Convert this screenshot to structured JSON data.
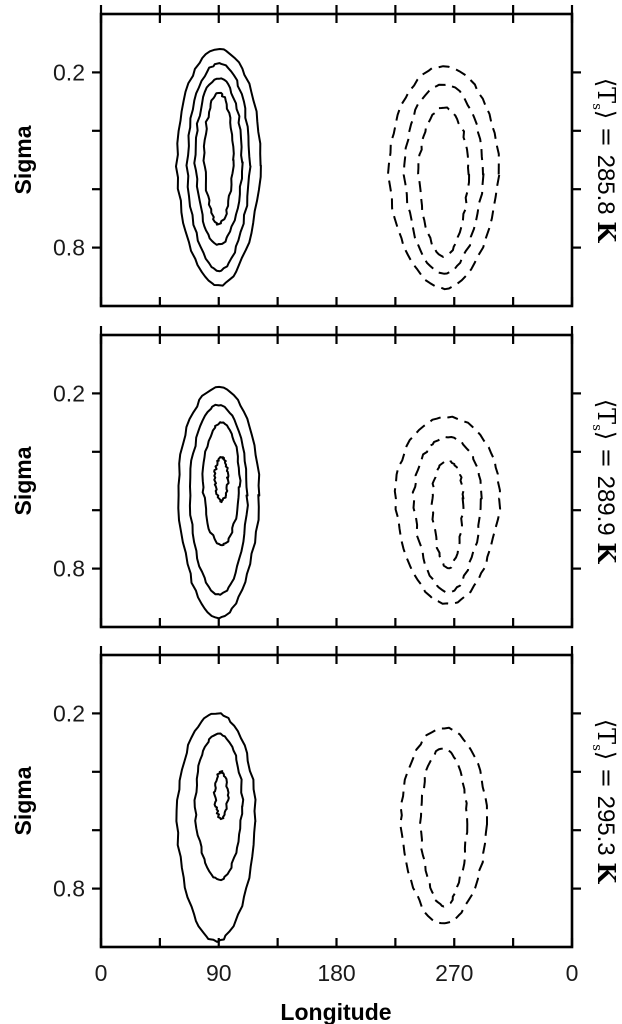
{
  "chart_data": {
    "type": "contour",
    "xlabel": "Longitude",
    "ylabel": "Sigma",
    "xlim": [
      0,
      360
    ],
    "ylim": [
      1.0,
      0.0
    ],
    "y_axis_inverted": true,
    "x_ticks": [
      0,
      45,
      90,
      135,
      180,
      225,
      270,
      315,
      360
    ],
    "x_tick_labels": [
      {
        "value": 0,
        "label": "0"
      },
      {
        "value": 90,
        "label": "90"
      },
      {
        "value": 180,
        "label": "180"
      },
      {
        "value": 270,
        "label": "270"
      },
      {
        "value": 360,
        "label": "0"
      }
    ],
    "y_ticks": [
      0.2,
      0.4,
      0.6,
      0.8
    ],
    "y_tick_labels": [
      {
        "value": 0.2,
        "label": "0.2"
      },
      {
        "value": 0.8,
        "label": "0.8"
      }
    ],
    "grid": false,
    "line_styles": {
      "positive": "solid",
      "negative": "dashed"
    },
    "panels": [
      {
        "label_prefix": "⟨T",
        "label_sub": "s",
        "label_suffix": "⟩ = ",
        "label_value": "285.8",
        "label_unit": "K",
        "contours": [
          {
            "sign": "positive",
            "center_lon": 90,
            "center_sigma": 0.52,
            "half_width_lon": 32,
            "sigma_top": 0.12,
            "sigma_bottom": 0.93
          },
          {
            "sign": "positive",
            "center_lon": 90,
            "center_sigma": 0.52,
            "half_width_lon": 24,
            "sigma_top": 0.17,
            "sigma_bottom": 0.88
          },
          {
            "sign": "positive",
            "center_lon": 90,
            "center_sigma": 0.51,
            "half_width_lon": 18,
            "sigma_top": 0.22,
            "sigma_bottom": 0.79
          },
          {
            "sign": "positive",
            "center_lon": 90,
            "center_sigma": 0.5,
            "half_width_lon": 11,
            "sigma_top": 0.27,
            "sigma_bottom": 0.72
          },
          {
            "sign": "negative",
            "center_lon": 262,
            "center_sigma": 0.55,
            "half_width_lon": 42,
            "sigma_top": 0.18,
            "sigma_bottom": 0.94
          },
          {
            "sign": "negative",
            "center_lon": 262,
            "center_sigma": 0.55,
            "half_width_lon": 30,
            "sigma_top": 0.24,
            "sigma_bottom": 0.89
          },
          {
            "sign": "negative",
            "center_lon": 262,
            "center_sigma": 0.55,
            "half_width_lon": 19,
            "sigma_top": 0.32,
            "sigma_bottom": 0.83
          }
        ]
      },
      {
        "label_prefix": "⟨T",
        "label_sub": "s",
        "label_suffix": "⟩ = ",
        "label_value": "289.9",
        "label_unit": "K",
        "contours": [
          {
            "sign": "positive",
            "center_lon": 90,
            "center_sigma": 0.55,
            "half_width_lon": 31,
            "sigma_top": 0.18,
            "sigma_bottom": 0.97
          },
          {
            "sign": "positive",
            "center_lon": 90,
            "center_sigma": 0.55,
            "half_width_lon": 22,
            "sigma_top": 0.24,
            "sigma_bottom": 0.89
          },
          {
            "sign": "positive",
            "center_lon": 92,
            "center_sigma": 0.52,
            "half_width_lon": 14,
            "sigma_top": 0.3,
            "sigma_bottom": 0.72
          },
          {
            "sign": "positive",
            "center_lon": 92,
            "center_sigma": 0.49,
            "half_width_lon": 5,
            "sigma_top": 0.42,
            "sigma_bottom": 0.57
          },
          {
            "sign": "negative",
            "center_lon": 265,
            "center_sigma": 0.56,
            "half_width_lon": 40,
            "sigma_top": 0.28,
            "sigma_bottom": 0.92
          },
          {
            "sign": "negative",
            "center_lon": 265,
            "center_sigma": 0.56,
            "half_width_lon": 26,
            "sigma_top": 0.35,
            "sigma_bottom": 0.88
          },
          {
            "sign": "negative",
            "center_lon": 265,
            "center_sigma": 0.56,
            "half_width_lon": 12,
            "sigma_top": 0.43,
            "sigma_bottom": 0.8
          }
        ]
      },
      {
        "label_prefix": "⟨T",
        "label_sub": "s",
        "label_suffix": "⟩ = ",
        "label_value": "295.3",
        "label_unit": "K",
        "contours": [
          {
            "sign": "positive",
            "center_lon": 88,
            "center_sigma": 0.57,
            "half_width_lon": 30,
            "sigma_top": 0.2,
            "sigma_bottom": 0.98
          },
          {
            "sign": "positive",
            "center_lon": 90,
            "center_sigma": 0.52,
            "half_width_lon": 18,
            "sigma_top": 0.27,
            "sigma_bottom": 0.77
          },
          {
            "sign": "positive",
            "center_lon": 92,
            "center_sigma": 0.48,
            "half_width_lon": 5,
            "sigma_top": 0.4,
            "sigma_bottom": 0.56
          },
          {
            "sign": "negative",
            "center_lon": 262,
            "center_sigma": 0.58,
            "half_width_lon": 33,
            "sigma_top": 0.25,
            "sigma_bottom": 0.92
          },
          {
            "sign": "negative",
            "center_lon": 262,
            "center_sigma": 0.58,
            "half_width_lon": 18,
            "sigma_top": 0.32,
            "sigma_bottom": 0.86
          }
        ]
      }
    ]
  }
}
